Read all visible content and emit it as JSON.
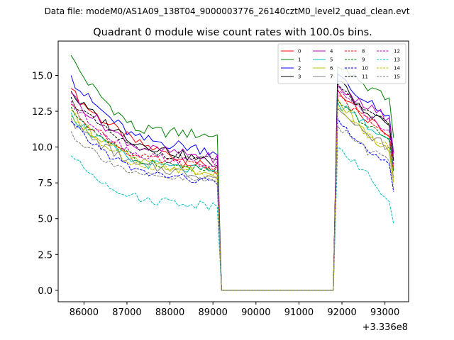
{
  "chart_data": {
    "type": "line",
    "suptitle": "Data file: modeM0/AS1A09_138T04_9000003776_26140cztM0_level2_quad_clean.evt",
    "title": "Quadrant 0 module wise count rates with 100.0s bins.",
    "xlabel": "",
    "ylabel": "",
    "x_offset_label": "+3.336e8",
    "xlim": [
      85400,
      93550
    ],
    "ylim": [
      -0.8,
      17.4
    ],
    "x_ticks": [
      86000,
      87000,
      88000,
      89000,
      90000,
      91000,
      92000,
      93000
    ],
    "x_tick_labels": [
      "86000",
      "87000",
      "88000",
      "89000",
      "90000",
      "91000",
      "92000",
      "93000"
    ],
    "y_ticks": [
      0,
      2.5,
      5,
      7.5,
      10,
      12.5,
      15
    ],
    "y_tick_labels": [
      "0.0",
      "2.5",
      "5.0",
      "7.5",
      "10.0",
      "12.5",
      "15.0"
    ],
    "segments": {
      "x_start": 85700,
      "bin": 100,
      "first_n": 35,
      "gap_start": 89200,
      "gap_end": 91800,
      "second_start": 91900,
      "second_n": 14
    },
    "series": [
      {
        "name": "0",
        "color": "#ff0000",
        "dash": "solid",
        "first": [
          14.1,
          10.3,
          8.3
        ],
        "second": [
          14.0,
          12.0,
          10.5
        ],
        "amp": 0.35
      },
      {
        "name": "1",
        "color": "#008000",
        "dash": "solid",
        "first": [
          16.4,
          11.2,
          10.8
        ],
        "second": [
          15.6,
          14.2,
          13.3
        ],
        "amp": 0.4
      },
      {
        "name": "2",
        "color": "#0000ff",
        "dash": "solid",
        "first": [
          15.0,
          10.6,
          9.7
        ],
        "second": [
          15.1,
          13.3,
          12.0
        ],
        "amp": 0.4
      },
      {
        "name": "3",
        "color": "#000000",
        "dash": "solid",
        "first": [
          13.9,
          10.3,
          8.8
        ],
        "second": [
          14.6,
          12.6,
          11.3
        ],
        "amp": 0.35
      },
      {
        "name": "4",
        "color": "#bf00bf",
        "dash": "solid",
        "first": [
          13.8,
          10.0,
          9.2
        ],
        "second": [
          14.3,
          12.8,
          11.9
        ],
        "amp": 0.35
      },
      {
        "name": "5",
        "color": "#00bfbf",
        "dash": "solid",
        "first": [
          12.4,
          8.9,
          8.2
        ],
        "second": [
          13.1,
          11.6,
          10.4
        ],
        "amp": 0.35
      },
      {
        "name": "6",
        "color": "#bfbf00",
        "dash": "solid",
        "first": [
          12.6,
          9.0,
          8.0
        ],
        "second": [
          13.4,
          10.9,
          9.4
        ],
        "amp": 0.35
      },
      {
        "name": "7",
        "color": "#808080",
        "dash": "solid",
        "first": [
          12.0,
          8.7,
          7.9
        ],
        "second": [
          12.7,
          11.0,
          9.8
        ],
        "amp": 0.35
      },
      {
        "name": "8",
        "color": "#ff0000",
        "dash": "dashed",
        "first": [
          13.0,
          9.3,
          8.5
        ],
        "second": [
          13.6,
          11.9,
          10.6
        ],
        "amp": 0.3
      },
      {
        "name": "9",
        "color": "#008000",
        "dash": "dashed",
        "first": [
          12.8,
          9.1,
          8.3
        ],
        "second": [
          13.3,
          11.6,
          10.3
        ],
        "amp": 0.3
      },
      {
        "name": "10",
        "color": "#0000ff",
        "dash": "dashed",
        "first": [
          11.8,
          8.3,
          7.5
        ],
        "second": [
          12.0,
          10.0,
          8.6
        ],
        "amp": 0.3
      },
      {
        "name": "11",
        "color": "#000000",
        "dash": "dashed",
        "first": [
          13.5,
          9.8,
          9.0
        ],
        "second": [
          14.4,
          12.5,
          11.4
        ],
        "amp": 0.3
      },
      {
        "name": "12",
        "color": "#bf00bf",
        "dash": "dashed",
        "first": [
          13.2,
          9.5,
          8.7
        ],
        "second": [
          13.9,
          12.2,
          11.0
        ],
        "amp": 0.3
      },
      {
        "name": "13",
        "color": "#00bfbf",
        "dash": "dashed",
        "first": [
          9.4,
          6.4,
          5.9
        ],
        "second": [
          10.0,
          8.3,
          5.8
        ],
        "amp": 0.35
      },
      {
        "name": "14",
        "color": "#bfbf00",
        "dash": "dashed",
        "first": [
          12.2,
          8.8,
          8.1
        ],
        "second": [
          12.8,
          11.0,
          9.7
        ],
        "amp": 0.3
      },
      {
        "name": "15",
        "color": "#808080",
        "dash": "dashed",
        "first": [
          11.1,
          8.0,
          7.6
        ],
        "second": [
          11.5,
          9.8,
          8.9
        ],
        "amp": 0.3
      }
    ]
  }
}
